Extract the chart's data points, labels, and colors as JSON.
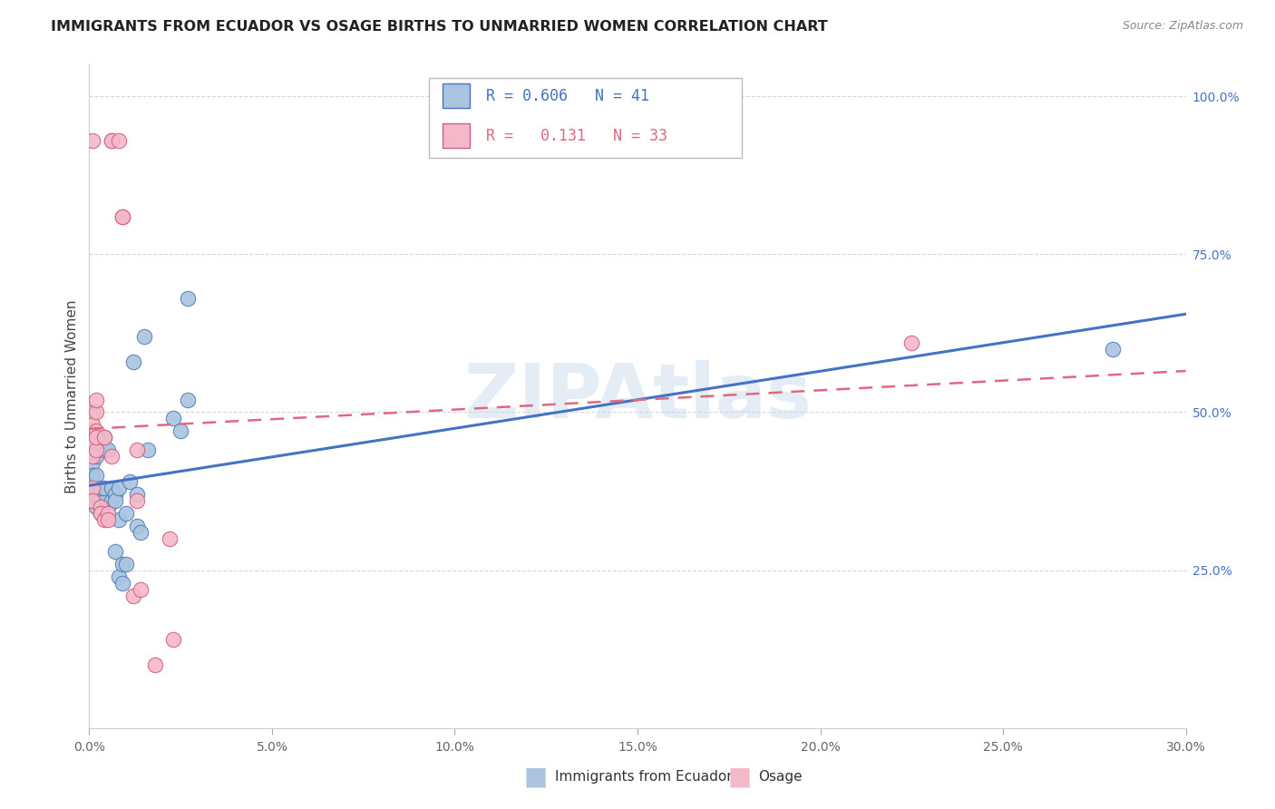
{
  "title": "IMMIGRANTS FROM ECUADOR VS OSAGE BIRTHS TO UNMARRIED WOMEN CORRELATION CHART",
  "source": "Source: ZipAtlas.com",
  "ylabel": "Births to Unmarried Women",
  "legend_blue_R": "0.606",
  "legend_blue_N": "41",
  "legend_pink_R": "0.131",
  "legend_pink_N": "33",
  "legend_blue_label": "Immigrants from Ecuador",
  "legend_pink_label": "Osage",
  "blue_scatter": [
    [
      0.001,
      0.38
    ],
    [
      0.001,
      0.36
    ],
    [
      0.001,
      0.42
    ],
    [
      0.001,
      0.4
    ],
    [
      0.002,
      0.37
    ],
    [
      0.002,
      0.35
    ],
    [
      0.002,
      0.4
    ],
    [
      0.002,
      0.43
    ],
    [
      0.003,
      0.36
    ],
    [
      0.003,
      0.38
    ],
    [
      0.003,
      0.34
    ],
    [
      0.003,
      0.46
    ],
    [
      0.004,
      0.44
    ],
    [
      0.004,
      0.38
    ],
    [
      0.004,
      0.46
    ],
    [
      0.005,
      0.35
    ],
    [
      0.005,
      0.44
    ],
    [
      0.006,
      0.36
    ],
    [
      0.006,
      0.38
    ],
    [
      0.007,
      0.28
    ],
    [
      0.007,
      0.37
    ],
    [
      0.007,
      0.36
    ],
    [
      0.008,
      0.38
    ],
    [
      0.008,
      0.33
    ],
    [
      0.008,
      0.24
    ],
    [
      0.009,
      0.26
    ],
    [
      0.009,
      0.23
    ],
    [
      0.01,
      0.34
    ],
    [
      0.01,
      0.26
    ],
    [
      0.011,
      0.39
    ],
    [
      0.012,
      0.58
    ],
    [
      0.013,
      0.37
    ],
    [
      0.013,
      0.32
    ],
    [
      0.014,
      0.31
    ],
    [
      0.015,
      0.62
    ],
    [
      0.016,
      0.44
    ],
    [
      0.023,
      0.49
    ],
    [
      0.025,
      0.47
    ],
    [
      0.027,
      0.52
    ],
    [
      0.027,
      0.68
    ],
    [
      0.28,
      0.6
    ]
  ],
  "pink_scatter": [
    [
      0.001,
      0.45
    ],
    [
      0.001,
      0.47
    ],
    [
      0.001,
      0.5
    ],
    [
      0.001,
      0.43
    ],
    [
      0.001,
      0.48
    ],
    [
      0.001,
      0.93
    ],
    [
      0.001,
      0.38
    ],
    [
      0.001,
      0.36
    ],
    [
      0.002,
      0.5
    ],
    [
      0.002,
      0.52
    ],
    [
      0.002,
      0.47
    ],
    [
      0.002,
      0.44
    ],
    [
      0.002,
      0.46
    ],
    [
      0.003,
      0.35
    ],
    [
      0.003,
      0.34
    ],
    [
      0.004,
      0.33
    ],
    [
      0.004,
      0.46
    ],
    [
      0.005,
      0.34
    ],
    [
      0.005,
      0.33
    ],
    [
      0.006,
      0.43
    ],
    [
      0.006,
      0.93
    ],
    [
      0.006,
      0.93
    ],
    [
      0.008,
      0.93
    ],
    [
      0.009,
      0.81
    ],
    [
      0.009,
      0.81
    ],
    [
      0.012,
      0.21
    ],
    [
      0.013,
      0.44
    ],
    [
      0.013,
      0.36
    ],
    [
      0.014,
      0.22
    ],
    [
      0.018,
      0.1
    ],
    [
      0.022,
      0.3
    ],
    [
      0.023,
      0.14
    ],
    [
      0.225,
      0.61
    ]
  ],
  "blue_scatter_color": "#aac4e0",
  "blue_edge_color": "#5580b8",
  "pink_scatter_color": "#f5b8c8",
  "pink_edge_color": "#d06080",
  "blue_line_color": "#4472c4",
  "pink_line_color": "#e06880",
  "watermark": "ZIPAtlas",
  "xlim": [
    0.0,
    0.3
  ],
  "ylim": [
    0.0,
    1.05
  ],
  "yticks": [
    0.25,
    0.5,
    0.75,
    1.0
  ],
  "ytick_labels": [
    "25.0%",
    "50.0%",
    "75.0%",
    "100.0%"
  ],
  "xticks": [
    0.0,
    0.05,
    0.1,
    0.15,
    0.2,
    0.25,
    0.3
  ],
  "xtick_labels": [
    "0.0%",
    "5.0%",
    "10.0%",
    "15.0%",
    "20.0%",
    "25.0%",
    "30.0%"
  ],
  "background_color": "#ffffff",
  "grid_color": "#d8d8d8"
}
